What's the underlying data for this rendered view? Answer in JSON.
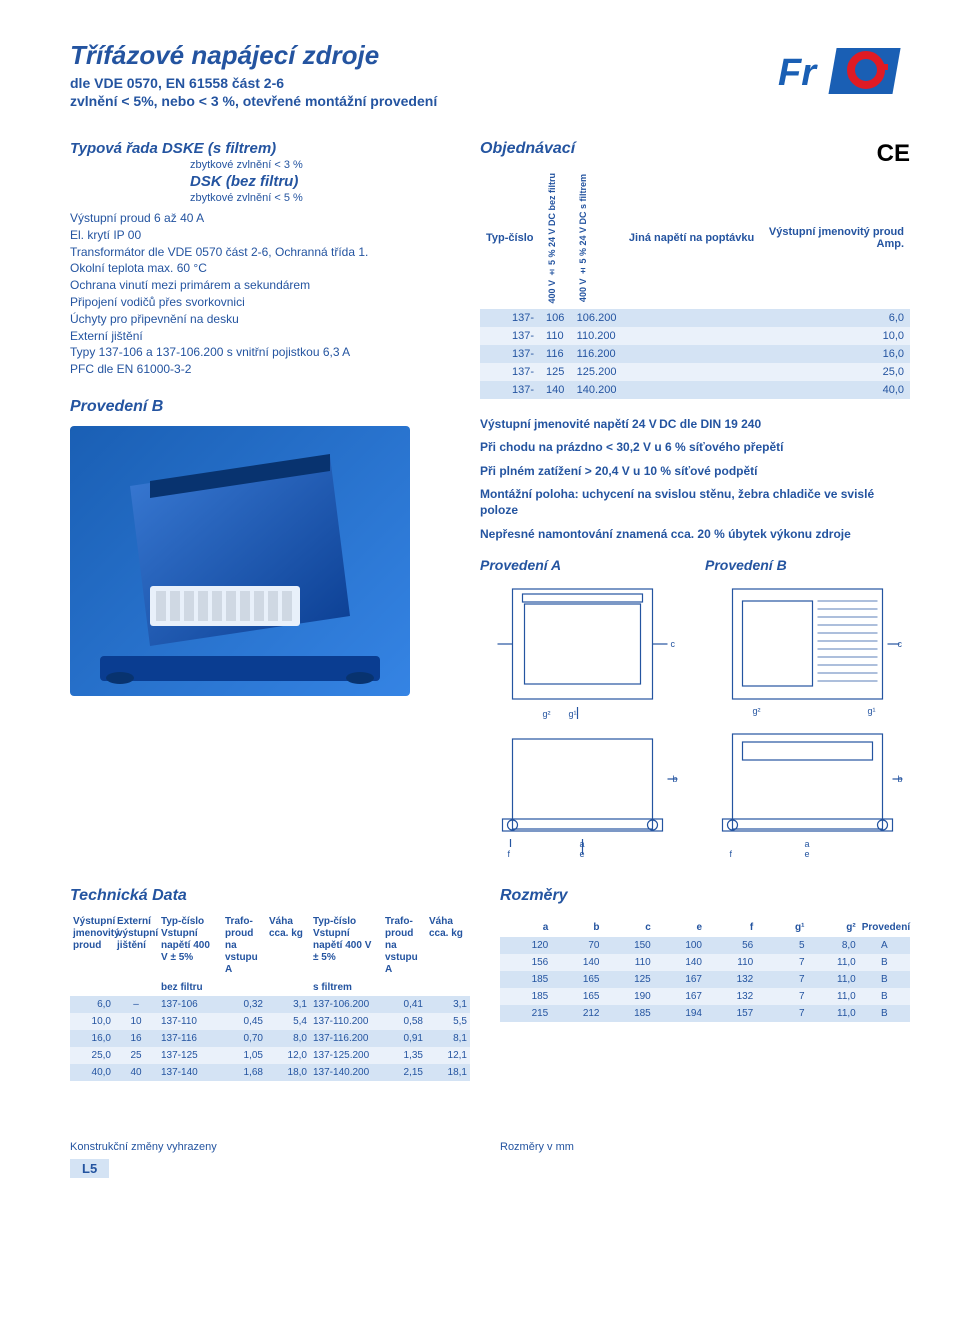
{
  "colors": {
    "primary": "#2454a0",
    "row_odd": "#d4e3f4",
    "row_even": "#eaf1fa",
    "logo_blue": "#1a5fb4",
    "logo_red": "#e01b24"
  },
  "header": {
    "title": "Třífázové napájecí zdroje",
    "subtitle1": "dle VDE 0570, EN 61558 část 2-6",
    "subtitle2": "zvlnění < 5%, nebo < 3 %, otevřené montážní provedení"
  },
  "series": {
    "title1": "Typová řada DSKE (s filtrem)",
    "sub1": "zbytkové zvlnění < 3 %",
    "title2": "DSK (bez filtru)",
    "sub2": "zbytkové zvlnění < 5 %"
  },
  "specs": [
    "Výstupní proud 6 až 40 A",
    "El. krytí IP 00",
    "Transformátor dle VDE 0570 část 2-6, Ochranná třída 1.",
    "Okolní teplota max. 60 °C",
    "Ochrana vinutí mezi primárem a sekundárem",
    "Připojení vodičů přes svorkovnici",
    "Úchyty pro připevnění na desku",
    "Externí jištění",
    "Typy 137-106 a 137-106.200 s vnitřní pojistkou 6,3 A",
    "PFC dle EN 61000-3-2"
  ],
  "prov_b_label": "Provedení B",
  "ordering": {
    "title": "Objednávací",
    "ce": "CE",
    "headers": {
      "typ": "Typ-číslo",
      "v1": "400 V ± 5 % 24 V DC bez filtru",
      "v2": "400 V ± 5 % 24 V DC s filtrem",
      "jina": "Jiná napětí na poptávku",
      "out": "Výstupní jmenovitý proud",
      "amp": "Amp."
    },
    "rows": [
      {
        "a": "137-",
        "b": "106",
        "c": "106.200",
        "d": "",
        "e": "6,0"
      },
      {
        "a": "137-",
        "b": "110",
        "c": "110.200",
        "d": "",
        "e": "10,0"
      },
      {
        "a": "137-",
        "b": "116",
        "c": "116.200",
        "d": "",
        "e": "16,0"
      },
      {
        "a": "137-",
        "b": "125",
        "c": "125.200",
        "d": "",
        "e": "25,0"
      },
      {
        "a": "137-",
        "b": "140",
        "c": "140.200",
        "d": "",
        "e": "40,0"
      }
    ]
  },
  "notes": [
    "Výstupní jmenovité napětí 24 V DC dle DIN 19 240",
    "Při chodu na prázdno < 30,2 V u 6 % síťového přepětí",
    "Při plném zatížení  > 20,4 V u 10 % síťové podpětí",
    "Montážní poloha: uchycení na svislou stěnu, žebra chladiče ve svislé poloze",
    "Nepřesné namontování znamená cca. 20 % úbytek výkonu zdroje"
  ],
  "diag": {
    "a_title": "Provedení A",
    "b_title": "Provedení B"
  },
  "technical": {
    "title": "Technická Data",
    "headers": {
      "h1": "Výstupní jmenovitý proud",
      "h2": "Externí výstupní jištění",
      "h3": "Typ-číslo Vstupní napětí 400 V ± 5%",
      "h4": "Trafo-proud na vstupu A",
      "h5": "Váha cca. kg",
      "h6": "Typ-číslo Vstupní napětí 400 V ± 5%",
      "h7": "Trafo-proud na vstupu A",
      "h8": "Váha cca. kg",
      "sub1": "bez filtru",
      "sub2": "s filtrem"
    },
    "rows": [
      [
        "6,0",
        "–",
        "137-106",
        "0,32",
        "3,1",
        "137-106.200",
        "0,41",
        "3,1"
      ],
      [
        "10,0",
        "10",
        "137-110",
        "0,45",
        "5,4",
        "137-110.200",
        "0,58",
        "5,5"
      ],
      [
        "16,0",
        "16",
        "137-116",
        "0,70",
        "8,0",
        "137-116.200",
        "0,91",
        "8,1"
      ],
      [
        "25,0",
        "25",
        "137-125",
        "1,05",
        "12,0",
        "137-125.200",
        "1,35",
        "12,1"
      ],
      [
        "40,0",
        "40",
        "137-140",
        "1,68",
        "18,0",
        "137-140.200",
        "2,15",
        "18,1"
      ]
    ]
  },
  "dims": {
    "title": "Rozměry",
    "headers": [
      "a",
      "b",
      "c",
      "e",
      "f",
      "g¹",
      "g²",
      "Provedení"
    ],
    "rows": [
      [
        "120",
        "70",
        "150",
        "100",
        "56",
        "5",
        "8,0",
        "A"
      ],
      [
        "156",
        "140",
        "110",
        "140",
        "110",
        "7",
        "11,0",
        "B"
      ],
      [
        "185",
        "165",
        "125",
        "167",
        "132",
        "7",
        "11,0",
        "B"
      ],
      [
        "185",
        "165",
        "190",
        "167",
        "132",
        "7",
        "11,0",
        "B"
      ],
      [
        "215",
        "212",
        "185",
        "194",
        "157",
        "7",
        "11,0",
        "B"
      ]
    ]
  },
  "footer": {
    "left": "Konstrukční změny vyhrazeny",
    "right": "Rozměry v mm",
    "tab": "L5"
  }
}
